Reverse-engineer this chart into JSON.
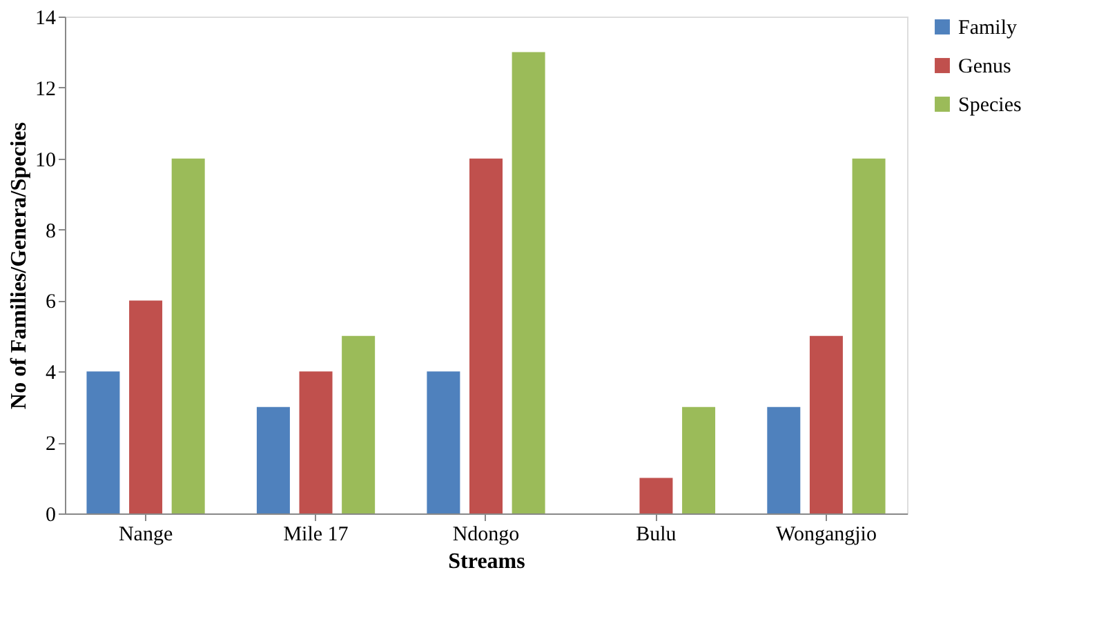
{
  "chart_data": {
    "type": "bar",
    "xlabel": "Streams",
    "ylabel": "No of Families/Genera/Species",
    "categories": [
      "Nange",
      "Mile 17",
      "Ndongo",
      "Bulu",
      "Wongangjio"
    ],
    "series": [
      {
        "name": "Family",
        "color": "#4f81bd",
        "values": [
          4,
          3,
          4,
          0,
          3
        ]
      },
      {
        "name": "Genus",
        "color": "#c0504d",
        "values": [
          6,
          4,
          10,
          1,
          5
        ]
      },
      {
        "name": "Species",
        "color": "#9bbb59",
        "values": [
          10,
          5,
          13,
          3,
          10
        ]
      }
    ],
    "ylim": [
      0,
      14
    ],
    "yticks": [
      0,
      2,
      4,
      6,
      8,
      10,
      12,
      14
    ],
    "grid": false,
    "legend": "right"
  }
}
